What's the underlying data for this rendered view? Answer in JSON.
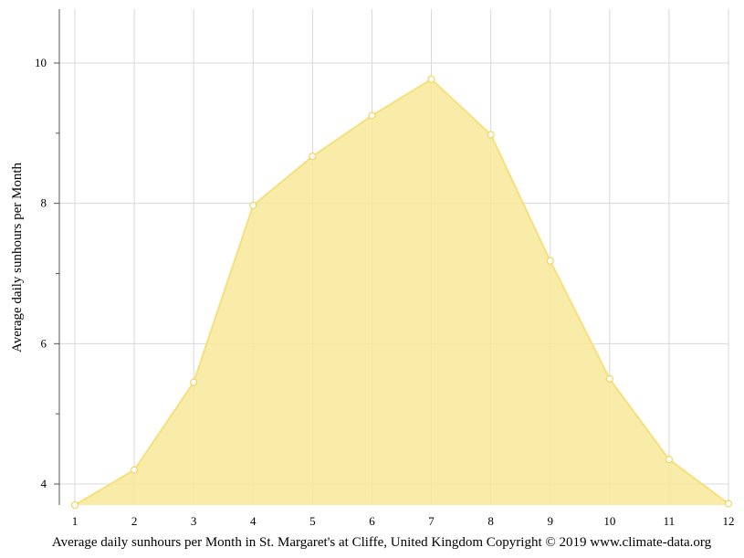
{
  "chart_data": {
    "type": "area",
    "x": [
      1,
      2,
      3,
      4,
      5,
      6,
      7,
      8,
      9,
      10,
      11,
      12
    ],
    "series": [
      {
        "values": [
          3.7,
          4.2,
          5.45,
          7.97,
          8.67,
          9.25,
          9.77,
          8.98,
          7.18,
          5.5,
          4.35,
          3.72
        ]
      }
    ],
    "ylabel": "Average daily sunhours per Month",
    "caption": "Average daily sunhours per Month in St. Margaret's at Cliffe, United Kingdom Copyright © 2019 www.climate-data.org",
    "xlim": [
      1,
      12
    ],
    "ylim": [
      3.7,
      10.75
    ],
    "yticks_major": [
      4,
      6,
      8,
      10
    ],
    "yticks_minor": [
      5,
      7,
      9
    ],
    "grid": true,
    "colors": {
      "fill": "#f8e99a",
      "line": "#f6e07c",
      "point_fill": "#ffffff",
      "point_stroke": "#f1d560"
    }
  }
}
